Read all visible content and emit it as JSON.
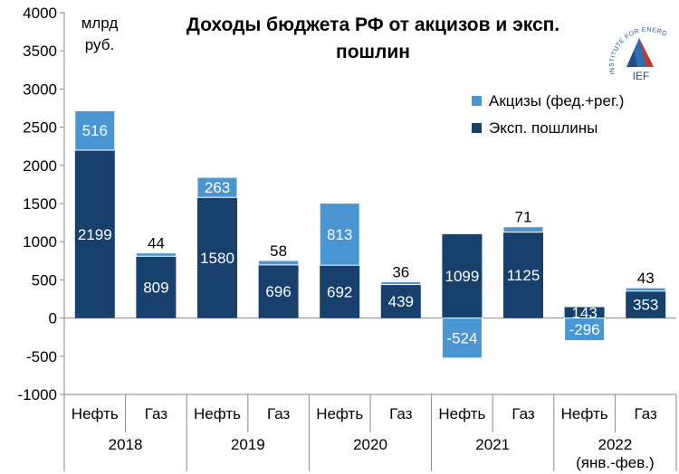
{
  "chart_data": {
    "type": "bar",
    "stacked": true,
    "title_lines": [
      "Доходы бюджета РФ от акцизов и эксп.",
      "пошлин"
    ],
    "unit_lines": [
      "млрд",
      "руб."
    ],
    "ylim": [
      -1000,
      4000
    ],
    "yticks": [
      -1000,
      -500,
      0,
      500,
      1000,
      1500,
      2000,
      2500,
      3000,
      3500,
      4000
    ],
    "categories": [
      "Нефть",
      "Газ",
      "Нефть",
      "Газ",
      "Нефть",
      "Газ",
      "Нефть",
      "Газ",
      "Нефть",
      "Газ"
    ],
    "groups": [
      {
        "label": [
          "2018"
        ]
      },
      {
        "label": [
          "2019"
        ]
      },
      {
        "label": [
          "2020"
        ]
      },
      {
        "label": [
          "2021"
        ]
      },
      {
        "label": [
          "2022",
          "(янв.-фев.)"
        ]
      }
    ],
    "series": [
      {
        "name": "Эксп. пошлины",
        "color": "#17406d",
        "values": [
          2199,
          809,
          1580,
          696,
          692,
          439,
          1099,
          1125,
          143,
          353
        ]
      },
      {
        "name": "Акцизы (фед.+рег.)",
        "color": "#4a96d3",
        "values": [
          516,
          44,
          263,
          58,
          813,
          36,
          -524,
          71,
          -296,
          43
        ]
      }
    ],
    "legend_order": [
      1,
      0
    ],
    "legend_position": "top-right",
    "grid": false
  },
  "logo": {
    "text": "INSTITUTE FOR ENERGY AND FINANCE",
    "abbr": "IEF"
  }
}
